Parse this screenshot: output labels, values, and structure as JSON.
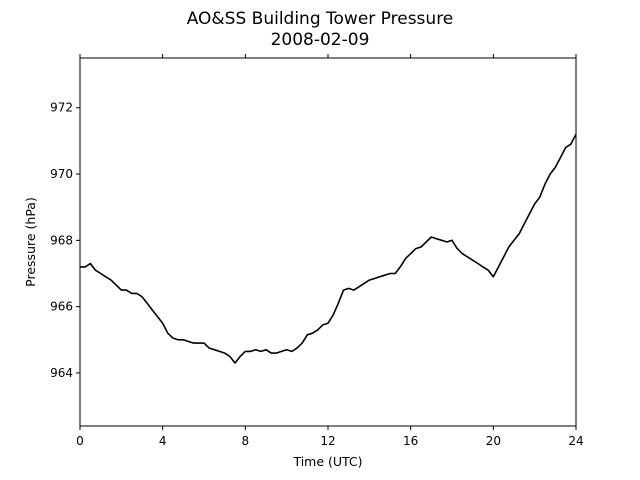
{
  "chart_data": {
    "type": "line",
    "title": "AO&SS Building Tower Pressure",
    "subtitle": "2008-02-09",
    "xlabel": "Time (UTC)",
    "ylabel": "Pressure (hPa)",
    "xlim": [
      0,
      24
    ],
    "ylim": [
      962.4,
      973.5
    ],
    "x_ticks": [
      "0",
      "4",
      "8",
      "12",
      "16",
      "20",
      "24"
    ],
    "y_ticks": [
      "964",
      "966",
      "968",
      "970",
      "972"
    ],
    "grid": false,
    "series": [
      {
        "color": "#000000",
        "x": [
          0,
          0.25,
          0.5,
          0.75,
          1.0,
          1.25,
          1.5,
          1.75,
          2.0,
          2.25,
          2.5,
          2.75,
          3.0,
          3.25,
          3.5,
          3.75,
          4.0,
          4.25,
          4.5,
          4.75,
          5.0,
          5.25,
          5.5,
          5.75,
          6.0,
          6.25,
          6.5,
          6.75,
          7.0,
          7.25,
          7.5,
          7.75,
          8.0,
          8.25,
          8.5,
          8.75,
          9.0,
          9.25,
          9.5,
          9.75,
          10.0,
          10.25,
          10.5,
          10.75,
          11.0,
          11.25,
          11.5,
          11.75,
          12.0,
          12.25,
          12.5,
          12.75,
          13.0,
          13.25,
          13.5,
          13.75,
          14.0,
          14.25,
          14.5,
          14.75,
          15.0,
          15.25,
          15.5,
          15.75,
          16.0,
          16.25,
          16.5,
          16.75,
          17.0,
          17.25,
          17.5,
          17.75,
          18.0,
          18.25,
          18.5,
          18.75,
          19.0,
          19.25,
          19.5,
          19.75,
          20.0,
          20.25,
          20.5,
          20.75,
          21.0,
          21.25,
          21.5,
          21.75,
          22.0,
          22.25,
          22.5,
          22.75,
          23.0,
          23.25,
          23.5,
          23.75,
          24.0
        ],
        "values": [
          967.2,
          967.2,
          967.3,
          967.1,
          967.0,
          966.9,
          966.8,
          966.65,
          966.5,
          966.5,
          966.4,
          966.4,
          966.3,
          966.1,
          965.9,
          965.7,
          965.5,
          965.2,
          965.05,
          965.0,
          965.0,
          964.95,
          964.9,
          964.9,
          964.9,
          964.75,
          964.7,
          964.65,
          964.6,
          964.5,
          964.3,
          964.5,
          964.65,
          964.65,
          964.7,
          964.65,
          964.7,
          964.6,
          964.6,
          964.65,
          964.7,
          964.65,
          964.75,
          964.9,
          965.15,
          965.2,
          965.3,
          965.45,
          965.5,
          965.75,
          966.1,
          966.5,
          966.55,
          966.5,
          966.6,
          966.7,
          966.8,
          966.85,
          966.9,
          966.95,
          967.0,
          967.0,
          967.2,
          967.45,
          967.6,
          967.75,
          967.8,
          967.95,
          968.1,
          968.05,
          968.0,
          967.95,
          968.0,
          967.75,
          967.6,
          967.5,
          967.4,
          967.3,
          967.2,
          967.1,
          966.9,
          967.2,
          967.5,
          967.8,
          968.0,
          968.2,
          968.5,
          968.8,
          969.1,
          969.3,
          969.7,
          970.0,
          970.2,
          970.5,
          970.8,
          970.9,
          971.2
        ]
      }
    ]
  }
}
